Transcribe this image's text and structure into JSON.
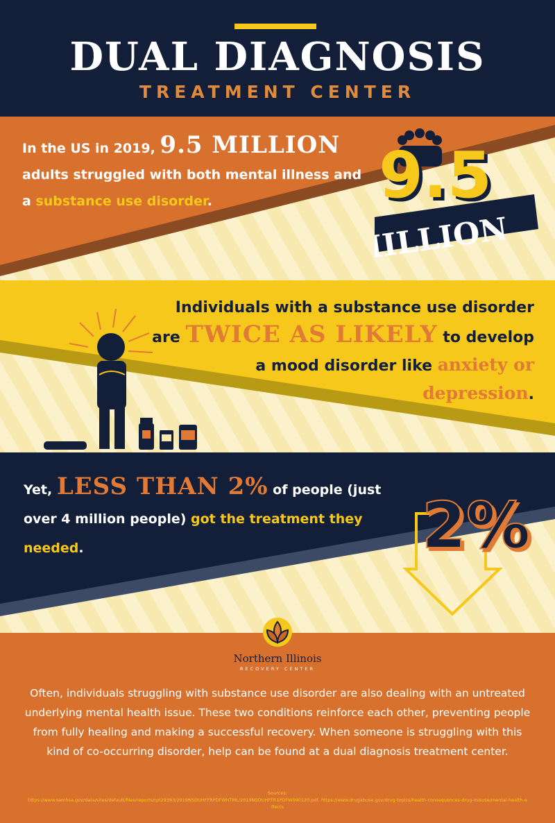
{
  "header": {
    "title": "DUAL DIAGNOSIS",
    "subtitle": "TREATMENT CENTER"
  },
  "stat1": {
    "pre": "In the US in 2019, ",
    "highlight": "9.5 MILLION",
    "mid": "adults struggled with both mental illness and a ",
    "highlight2": "substance use disorder",
    "end": ".",
    "graphic_number": "9.5",
    "graphic_label": "MILLION",
    "icon": "crowd-icon"
  },
  "stat2": {
    "pre": "Individuals with a substance use disorder are ",
    "highlight": "TWICE AS LIKELY",
    "mid": " to develop a mood disorder like ",
    "highlight2": "anxiety or depression",
    "end": ".",
    "icon": "stressed-person-with-pills-icon"
  },
  "stat3": {
    "pre": "Yet, ",
    "highlight": "LESS THAN 2%",
    "mid": " of people (just over 4 million people) ",
    "highlight2": "got the treatment they needed",
    "end": ".",
    "graphic_number": "2%",
    "icon": "down-arrow-icon"
  },
  "logo": {
    "name": "Northern Illinois",
    "tagline": "RECOVERY CENTER"
  },
  "body": "Often, individuals struggling with substance use disorder are also dealing with an untreated underlying mental health issue. These two conditions reinforce each other, preventing people from fully healing and making a successful recovery. When someone is struggling with this kind of co-occurring disorder, help can be found at a dual diagnosis treatment center.",
  "sources": {
    "label": "Sources:",
    "text": "https://www.samhsa.gov/data/sites/default/files/reports/rpt29393/2019NSDUHFFRPDFWHTML/2019NSDUHFFR1PDFW090120.pdf, https://www.drugabuse.gov/drug-topics/health-consequences-drug-misuse/mental-health-effects"
  },
  "colors": {
    "navy": "#131e38",
    "orange": "#d9712e",
    "yellow": "#f6c81b",
    "cream": "#f7e9b0"
  }
}
